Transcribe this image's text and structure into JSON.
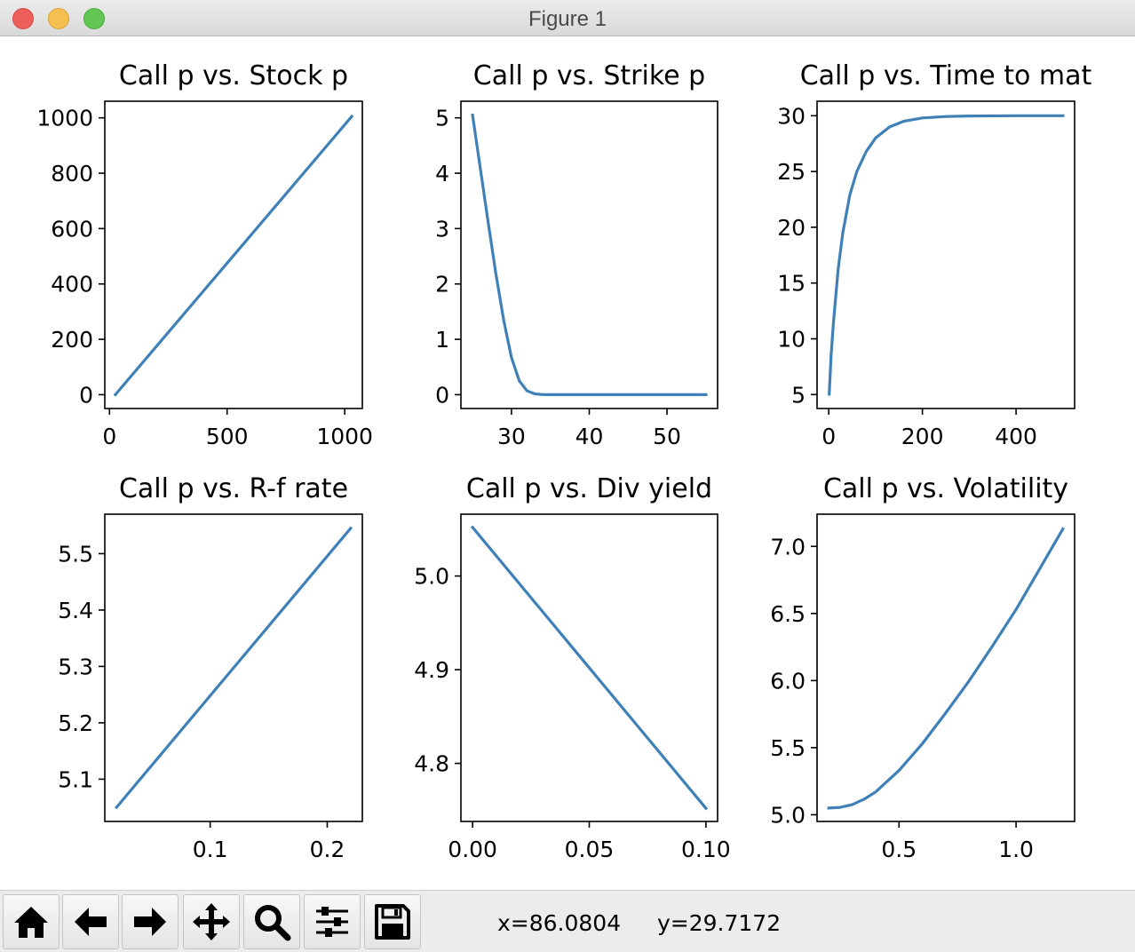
{
  "window": {
    "title": "Figure 1"
  },
  "toolbar": {
    "buttons": [
      {
        "name": "home-button",
        "icon": "home-icon"
      },
      {
        "name": "back-button",
        "icon": "arrow-left-icon"
      },
      {
        "name": "forward-button",
        "icon": "arrow-right-icon"
      },
      {
        "name": "pan-button",
        "icon": "move-arrows-icon"
      },
      {
        "name": "zoom-button",
        "icon": "magnifier-icon"
      },
      {
        "name": "configure-subplots-button",
        "icon": "sliders-icon"
      },
      {
        "name": "save-button",
        "icon": "floppy-disk-icon"
      }
    ],
    "x_readout": "x=86.0804",
    "y_readout": "y=29.7172"
  },
  "colors": {
    "line": "#3f80b7",
    "axes": "#000000",
    "background": "#ffffff"
  },
  "chart_data": [
    {
      "type": "line",
      "title": "Call p vs. Stock p",
      "xlim": [
        -20,
        1075
      ],
      "ylim": [
        -50,
        1060
      ],
      "xticks": [
        0,
        500,
        1000
      ],
      "xtick_labels": [
        "0",
        "500",
        "1000"
      ],
      "yticks": [
        0,
        200,
        400,
        600,
        800,
        1000
      ],
      "ytick_labels": [
        "0",
        "200",
        "400",
        "600",
        "800",
        "1000"
      ],
      "series": [
        {
          "x": [
            25,
            1030
          ],
          "y": [
            0,
            1005
          ]
        }
      ]
    },
    {
      "type": "line",
      "title": "Call p vs. Strike p",
      "xlim": [
        23.5,
        56.5
      ],
      "ylim": [
        -0.25,
        5.3
      ],
      "xticks": [
        30,
        40,
        50
      ],
      "xtick_labels": [
        "30",
        "40",
        "50"
      ],
      "yticks": [
        0,
        1,
        2,
        3,
        4,
        5
      ],
      "ytick_labels": [
        "0",
        "1",
        "2",
        "3",
        "4",
        "5"
      ],
      "series": [
        {
          "x": [
            25,
            26,
            27,
            28,
            29,
            30,
            31,
            32,
            33,
            34,
            35,
            37,
            40,
            45,
            50,
            55
          ],
          "y": [
            5.05,
            4.08,
            3.11,
            2.18,
            1.34,
            0.67,
            0.25,
            0.07,
            0.015,
            0.002,
            0,
            0,
            0,
            0,
            0,
            0
          ]
        }
      ]
    },
    {
      "type": "line",
      "title": "Call p vs. Time to mat",
      "xlim": [
        -25,
        525
      ],
      "ylim": [
        3.75,
        31.3
      ],
      "xticks": [
        0,
        200,
        400
      ],
      "xtick_labels": [
        "0",
        "200",
        "400"
      ],
      "yticks": [
        5,
        10,
        15,
        20,
        25,
        30
      ],
      "ytick_labels": [
        "5",
        "10",
        "15",
        "20",
        "25",
        "30"
      ],
      "series": [
        {
          "x": [
            1,
            5,
            10,
            20,
            30,
            45,
            60,
            80,
            100,
            130,
            160,
            200,
            250,
            300,
            400,
            500
          ],
          "y": [
            5.05,
            8.5,
            11.5,
            16.2,
            19.5,
            22.9,
            25.0,
            26.8,
            28.0,
            29.0,
            29.5,
            29.8,
            29.93,
            29.98,
            30.0,
            30.0
          ]
        }
      ]
    },
    {
      "type": "line",
      "title": "Call p vs. R-f rate",
      "xlim": [
        0.01,
        0.23
      ],
      "ylim": [
        5.025,
        5.57
      ],
      "xticks": [
        0.1,
        0.2
      ],
      "xtick_labels": [
        "0.1",
        "0.2"
      ],
      "yticks": [
        5.1,
        5.2,
        5.3,
        5.4,
        5.5
      ],
      "ytick_labels": [
        "5.1",
        "5.2",
        "5.3",
        "5.4",
        "5.5"
      ],
      "series": [
        {
          "x": [
            0.02,
            0.22
          ],
          "y": [
            5.05,
            5.545
          ]
        }
      ]
    },
    {
      "type": "line",
      "title": "Call p vs. Div yield",
      "xlim": [
        -0.005,
        0.105
      ],
      "ylim": [
        4.738,
        5.066
      ],
      "xticks": [
        0.0,
        0.05,
        0.1
      ],
      "xtick_labels": [
        "0.00",
        "0.05",
        "0.10"
      ],
      "yticks": [
        4.8,
        4.9,
        5.0
      ],
      "ytick_labels": [
        "4.8",
        "4.9",
        "5.0"
      ],
      "series": [
        {
          "x": [
            0.0,
            0.1
          ],
          "y": [
            5.052,
            4.752
          ]
        }
      ]
    },
    {
      "type": "line",
      "title": "Call p vs. Volatility",
      "xlim": [
        0.15,
        1.25
      ],
      "ylim": [
        4.95,
        7.24
      ],
      "xticks": [
        0.5,
        1.0
      ],
      "xtick_labels": [
        "0.5",
        "1.0"
      ],
      "yticks": [
        5.0,
        5.5,
        6.0,
        6.5,
        7.0
      ],
      "ytick_labels": [
        "5.0",
        "5.5",
        "6.0",
        "6.5",
        "7.0"
      ],
      "series": [
        {
          "x": [
            0.2,
            0.25,
            0.3,
            0.35,
            0.4,
            0.5,
            0.6,
            0.7,
            0.8,
            0.9,
            1.0,
            1.1,
            1.2
          ],
          "y": [
            5.05,
            5.055,
            5.075,
            5.115,
            5.17,
            5.33,
            5.53,
            5.76,
            6.0,
            6.26,
            6.53,
            6.83,
            7.13
          ]
        }
      ]
    }
  ]
}
